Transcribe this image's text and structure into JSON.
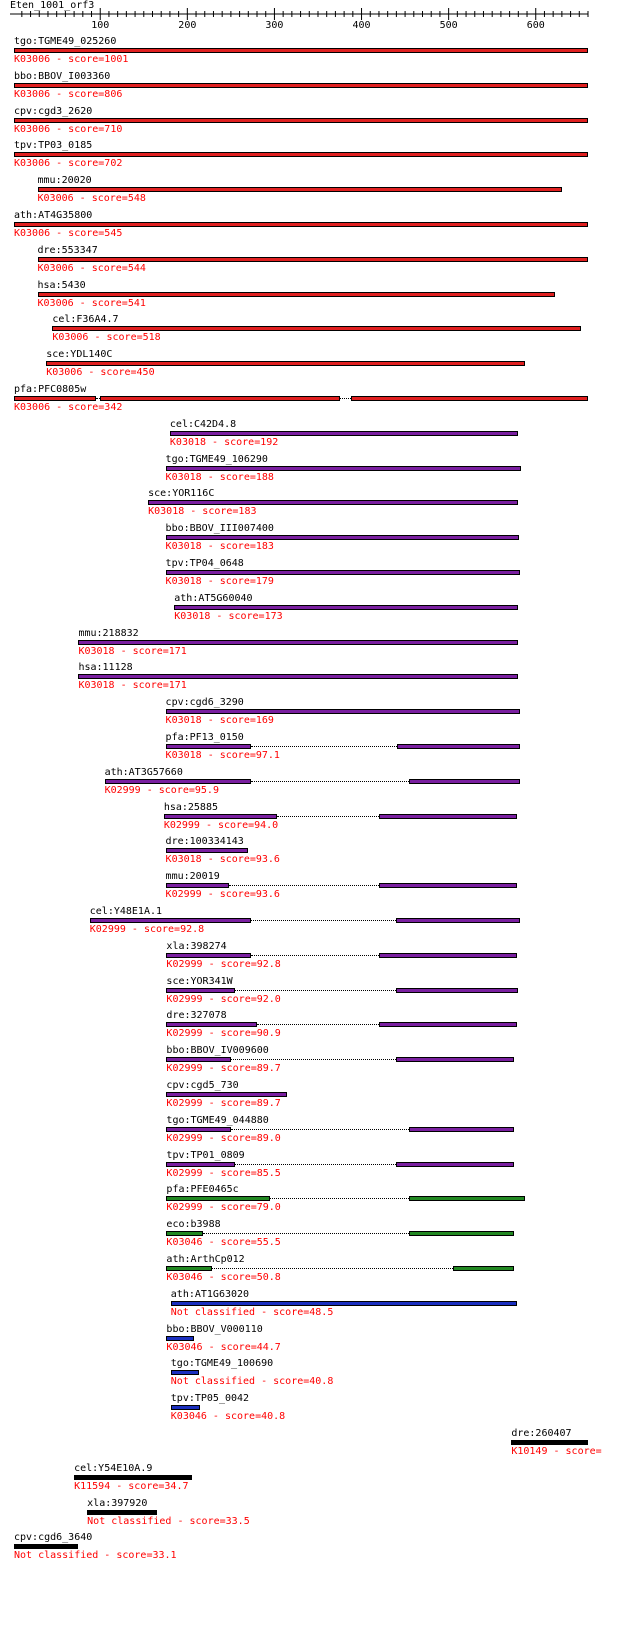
{
  "query": "Eten_1001_orf3",
  "axis": {
    "ticks": [
      "100",
      "200",
      "300",
      "400",
      "500",
      "600"
    ],
    "tick_values": [
      100,
      200,
      300,
      400,
      500,
      600
    ],
    "range": [
      1,
      660
    ]
  },
  "colors": {
    "K03006": "#e02020",
    "K03018": "#7a1fa0",
    "K02999": "#7a1fa0",
    "K03046_green": "#228822",
    "blue": "#1a2fbf",
    "black": "#000000",
    "score_text": "#ff0000"
  },
  "hits": [
    {
      "name": "tgo:TGME49_025260",
      "score": "K03006 - score=1001",
      "color": "#e02020",
      "segments": [
        [
          1,
          660
        ]
      ]
    },
    {
      "name": "bbo:BBOV_I003360",
      "score": "K03006 - score=806",
      "color": "#e02020",
      "segments": [
        [
          1,
          660
        ]
      ]
    },
    {
      "name": "cpv:cgd3_2620",
      "score": "K03006 - score=710",
      "color": "#e02020",
      "segments": [
        [
          1,
          660
        ]
      ]
    },
    {
      "name": "tpv:TP03_0185",
      "score": "K03006 - score=702",
      "color": "#e02020",
      "segments": [
        [
          1,
          660
        ]
      ]
    },
    {
      "name": "mmu:20020",
      "score": "K03006 - score=548",
      "color": "#e02020",
      "segments": [
        [
          28,
          630
        ]
      ]
    },
    {
      "name": "ath:AT4G35800",
      "score": "K03006 - score=545",
      "color": "#e02020",
      "segments": [
        [
          1,
          660
        ]
      ]
    },
    {
      "name": "dre:553347",
      "score": "K03006 - score=544",
      "color": "#e02020",
      "segments": [
        [
          28,
          660
        ]
      ]
    },
    {
      "name": "hsa:5430",
      "score": "K03006 - score=541",
      "color": "#e02020",
      "segments": [
        [
          28,
          622
        ]
      ]
    },
    {
      "name": "cel:F36A4.7",
      "score": "K03006 - score=518",
      "color": "#e02020",
      "segments": [
        [
          45,
          652
        ]
      ]
    },
    {
      "name": "sce:YDL140C",
      "score": "K03006 - score=450",
      "color": "#e02020",
      "segments": [
        [
          38,
          588
        ]
      ]
    },
    {
      "name": "pfa:PFC0805w",
      "score": "K03006 - score=342",
      "color": "#e02020",
      "segments": [
        [
          1,
          95
        ],
        [
          100,
          375
        ],
        [
          388,
          660
        ]
      ]
    },
    {
      "name": "cel:C42D4.8",
      "score": "K03018 - score=192",
      "color": "#7a1fa0",
      "segments": [
        [
          180,
          580
        ]
      ]
    },
    {
      "name": "tgo:TGME49_106290",
      "score": "K03018 - score=188",
      "color": "#7a1fa0",
      "segments": [
        [
          175,
          583
        ]
      ]
    },
    {
      "name": "sce:YOR116C",
      "score": "K03018 - score=183",
      "color": "#7a1fa0",
      "segments": [
        [
          155,
          580
        ]
      ]
    },
    {
      "name": "bbo:BBOV_III007400",
      "score": "K03018 - score=183",
      "color": "#7a1fa0",
      "segments": [
        [
          175,
          581
        ]
      ]
    },
    {
      "name": "tpv:TP04_0648",
      "score": "K03018 - score=179",
      "color": "#7a1fa0",
      "segments": [
        [
          175,
          582
        ]
      ]
    },
    {
      "name": "ath:AT5G60040",
      "score": "K03018 - score=173",
      "color": "#7a1fa0",
      "segments": [
        [
          185,
          580
        ]
      ]
    },
    {
      "name": "mmu:218832",
      "score": "K03018 - score=171",
      "color": "#7a1fa0",
      "segments": [
        [
          75,
          580
        ]
      ]
    },
    {
      "name": "hsa:11128",
      "score": "K03018 - score=171",
      "color": "#7a1fa0",
      "segments": [
        [
          75,
          580
        ]
      ]
    },
    {
      "name": "cpv:cgd6_3290",
      "score": "K03018 - score=169",
      "color": "#7a1fa0",
      "segments": [
        [
          175,
          582
        ]
      ]
    },
    {
      "name": "pfa:PF13_0150",
      "score": "K03018 - score=97.1",
      "color": "#7a1fa0",
      "segments": [
        [
          175,
          273
        ],
        [
          441,
          582
        ]
      ]
    },
    {
      "name": "ath:AT3G57660",
      "score": "K02999 - score=95.9",
      "color": "#7a1fa0",
      "segments": [
        [
          105,
          273
        ],
        [
          455,
          582
        ]
      ]
    },
    {
      "name": "hsa:25885",
      "score": "K02999 - score=94.0",
      "color": "#7a1fa0",
      "segments": [
        [
          173,
          303
        ],
        [
          420,
          578
        ]
      ]
    },
    {
      "name": "dre:100334143",
      "score": "K03018 - score=93.6",
      "color": "#7a1fa0",
      "segments": [
        [
          175,
          270
        ]
      ]
    },
    {
      "name": "mmu:20019",
      "score": "K02999 - score=93.6",
      "color": "#7a1fa0",
      "segments": [
        [
          175,
          248
        ],
        [
          420,
          578
        ]
      ]
    },
    {
      "name": "cel:Y48E1A.1",
      "score": "K02999 - score=92.8",
      "color": "#7a1fa0",
      "segments": [
        [
          88,
          273
        ],
        [
          440,
          582
        ]
      ]
    },
    {
      "name": "xla:398274",
      "score": "K02999 - score=92.8",
      "color": "#7a1fa0",
      "segments": [
        [
          176,
          273
        ],
        [
          420,
          578
        ]
      ]
    },
    {
      "name": "sce:YOR341W",
      "score": "K02999 - score=92.0",
      "color": "#7a1fa0",
      "segments": [
        [
          176,
          255
        ],
        [
          440,
          580
        ]
      ]
    },
    {
      "name": "dre:327078",
      "score": "K02999 - score=90.9",
      "color": "#7a1fa0",
      "segments": [
        [
          176,
          280
        ],
        [
          420,
          578
        ]
      ]
    },
    {
      "name": "bbo:BBOV_IV009600",
      "score": "K02999 - score=89.7",
      "color": "#7a1fa0",
      "segments": [
        [
          176,
          250
        ],
        [
          440,
          575
        ]
      ]
    },
    {
      "name": "cpv:cgd5_730",
      "score": "K02999 - score=89.7",
      "color": "#7a1fa0",
      "segments": [
        [
          176,
          315
        ]
      ]
    },
    {
      "name": "tgo:TGME49_044880",
      "score": "K02999 - score=89.0",
      "color": "#7a1fa0",
      "segments": [
        [
          176,
          250
        ],
        [
          455,
          575
        ]
      ]
    },
    {
      "name": "tpv:TP01_0809",
      "score": "K02999 - score=85.5",
      "color": "#7a1fa0",
      "segments": [
        [
          176,
          255
        ],
        [
          440,
          575
        ]
      ]
    },
    {
      "name": "pfa:PFE0465c",
      "score": "K02999 - score=79.0",
      "color": "#228822",
      "segments": [
        [
          176,
          295
        ],
        [
          455,
          588
        ]
      ]
    },
    {
      "name": "eco:b3988",
      "score": "K03046 - score=55.5",
      "color": "#228822",
      "segments": [
        [
          176,
          218
        ],
        [
          455,
          575
        ]
      ]
    },
    {
      "name": "ath:ArthCp012",
      "score": "K03046 - score=50.8",
      "color": "#228822",
      "segments": [
        [
          176,
          228
        ],
        [
          505,
          575
        ]
      ]
    },
    {
      "name": "ath:AT1G63020",
      "score": "Not classified - score=48.5",
      "color": "#1a2fbf",
      "segments": [
        [
          181,
          578
        ]
      ]
    },
    {
      "name": "bbo:BBOV_V000110",
      "score": "K03046 - score=44.7",
      "color": "#1a2fbf",
      "segments": [
        [
          176,
          208
        ]
      ]
    },
    {
      "name": "tgo:TGME49_100690",
      "score": "Not classified - score=40.8",
      "color": "#1a2fbf",
      "segments": [
        [
          181,
          213
        ]
      ]
    },
    {
      "name": "tpv:TP05_0042",
      "score": "K03046 - score=40.8",
      "color": "#1a2fbf",
      "segments": [
        [
          181,
          215
        ]
      ]
    },
    {
      "name": "dre:260407",
      "score": "K10149 - score=",
      "color": "#000000",
      "segments": [
        [
          572,
          660
        ]
      ]
    },
    {
      "name": "cel:Y54E10A.9",
      "score": "K11594 - score=34.7",
      "color": "#000000",
      "segments": [
        [
          70,
          205
        ]
      ]
    },
    {
      "name": "xla:397920",
      "score": "Not classified - score=33.5",
      "color": "#000000",
      "segments": [
        [
          85,
          165
        ]
      ]
    },
    {
      "name": "cpv:cgd6_3640",
      "score": "Not classified - score=33.1",
      "color": "#000000",
      "segments": [
        [
          1,
          75
        ]
      ]
    }
  ]
}
